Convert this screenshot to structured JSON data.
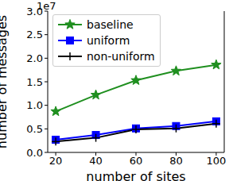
{
  "chart_data": {
    "type": "line",
    "x_label": "number of sites",
    "y_label": "number of messages",
    "annotation": "1e7",
    "x": [
      20,
      40,
      60,
      80,
      100
    ],
    "series": [
      {
        "name": "baseline",
        "color": "#1f8f1f",
        "marker": "star",
        "values": [
          0.87,
          1.22,
          1.53,
          1.73,
          1.86
        ]
      },
      {
        "name": "uniform",
        "color": "#0000ff",
        "marker": "square",
        "values": [
          0.27,
          0.37,
          0.51,
          0.56,
          0.66
        ]
      },
      {
        "name": "non-uniform",
        "color": "#000000",
        "marker": "plus",
        "values": [
          0.23,
          0.31,
          0.49,
          0.51,
          0.61
        ]
      }
    ],
    "xlim": [
      16,
      104
    ],
    "xticks": [
      20,
      40,
      60,
      80,
      100
    ],
    "ylim": [
      0,
      3.0
    ],
    "yticks": [
      {
        "value": 0,
        "label": "0.0"
      },
      0.5,
      {
        "value": 1,
        "label": "1.0"
      },
      1.5,
      {
        "value": 2,
        "label": "2.0"
      },
      2.5,
      {
        "value": 3,
        "label": "3.0"
      }
    ],
    "legend": "upper left"
  }
}
